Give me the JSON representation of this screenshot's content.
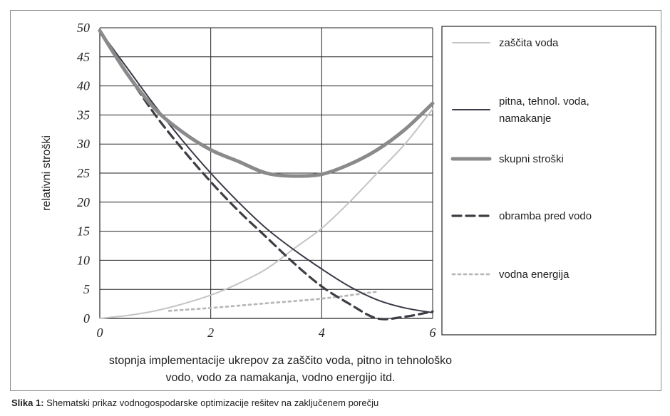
{
  "chart_data": {
    "type": "line",
    "xlabel_lines": [
      "stopnja implementacije ukrepov za zaščito voda, pitno in tehnološko",
      "vodo, vodo za namakanja, vodno energijo itd."
    ],
    "ylabel": "relativni stroški",
    "xlim": [
      0,
      6
    ],
    "ylim": [
      0,
      50
    ],
    "xticks": [
      "0",
      "2",
      "4",
      "6"
    ],
    "yticks": [
      "0",
      "5",
      "10",
      "15",
      "20",
      "25",
      "30",
      "35",
      "40",
      "45",
      "50"
    ],
    "grid": true,
    "legend_position": "right",
    "series": [
      {
        "name_lines": [
          "zaščita voda"
        ],
        "color": "#c4c4c4",
        "style": "solid-thin",
        "points": [
          [
            0,
            0
          ],
          [
            0.5,
            0.5
          ],
          [
            1,
            1.3
          ],
          [
            1.5,
            2.5
          ],
          [
            2,
            4
          ],
          [
            2.5,
            6
          ],
          [
            3,
            8.5
          ],
          [
            3.5,
            12
          ],
          [
            4,
            15.5
          ],
          [
            4.5,
            20
          ],
          [
            5,
            25
          ],
          [
            5.5,
            30
          ],
          [
            6,
            36
          ]
        ]
      },
      {
        "name_lines": [
          "pitna, tehnol. voda,",
          "namakanje"
        ],
        "color": "#3a3a48",
        "style": "solid",
        "points": [
          [
            0,
            49.5
          ],
          [
            0.5,
            43
          ],
          [
            1,
            36.5
          ],
          [
            1.5,
            30.5
          ],
          [
            2,
            25
          ],
          [
            2.5,
            20
          ],
          [
            3,
            15.5
          ],
          [
            3.5,
            11.8
          ],
          [
            4,
            8.5
          ],
          [
            4.5,
            5.5
          ],
          [
            5,
            3.2
          ],
          [
            5.5,
            1.8
          ],
          [
            6,
            1
          ]
        ]
      },
      {
        "name_lines": [
          "skupni stroški"
        ],
        "color": "#8a8a8a",
        "style": "thick",
        "points": [
          [
            0,
            49.5
          ],
          [
            0.5,
            42
          ],
          [
            1,
            36
          ],
          [
            1.5,
            32
          ],
          [
            2,
            29
          ],
          [
            2.5,
            27
          ],
          [
            3,
            25
          ],
          [
            3.5,
            24.5
          ],
          [
            4,
            24.8
          ],
          [
            4.5,
            26.5
          ],
          [
            5,
            29
          ],
          [
            5.5,
            32.5
          ],
          [
            6,
            37
          ]
        ]
      },
      {
        "name_lines": [
          "obramba pred vodo"
        ],
        "color": "#3d3d44",
        "style": "dashed",
        "points": [
          [
            0,
            49.5
          ],
          [
            0.5,
            42
          ],
          [
            1,
            35
          ],
          [
            1.5,
            29
          ],
          [
            2,
            23.5
          ],
          [
            2.5,
            18.5
          ],
          [
            3,
            14
          ],
          [
            3.5,
            9.5
          ],
          [
            4,
            5.5
          ],
          [
            4.5,
            2.5
          ],
          [
            5,
            0
          ],
          [
            5.5,
            0.3
          ],
          [
            6,
            1.2
          ]
        ]
      },
      {
        "name_lines": [
          "vodna energija"
        ],
        "color": "#b8b8b8",
        "style": "dotted",
        "points": [
          [
            1.25,
            1.3
          ],
          [
            2,
            1.8
          ],
          [
            3,
            2.6
          ],
          [
            4,
            3.4
          ],
          [
            5,
            4.6
          ]
        ]
      }
    ]
  },
  "caption": {
    "label": "Slika 1:",
    "text": " Shematski prikaz vodnogospodarske optimizacije rešitev na zaključenem porečju"
  }
}
